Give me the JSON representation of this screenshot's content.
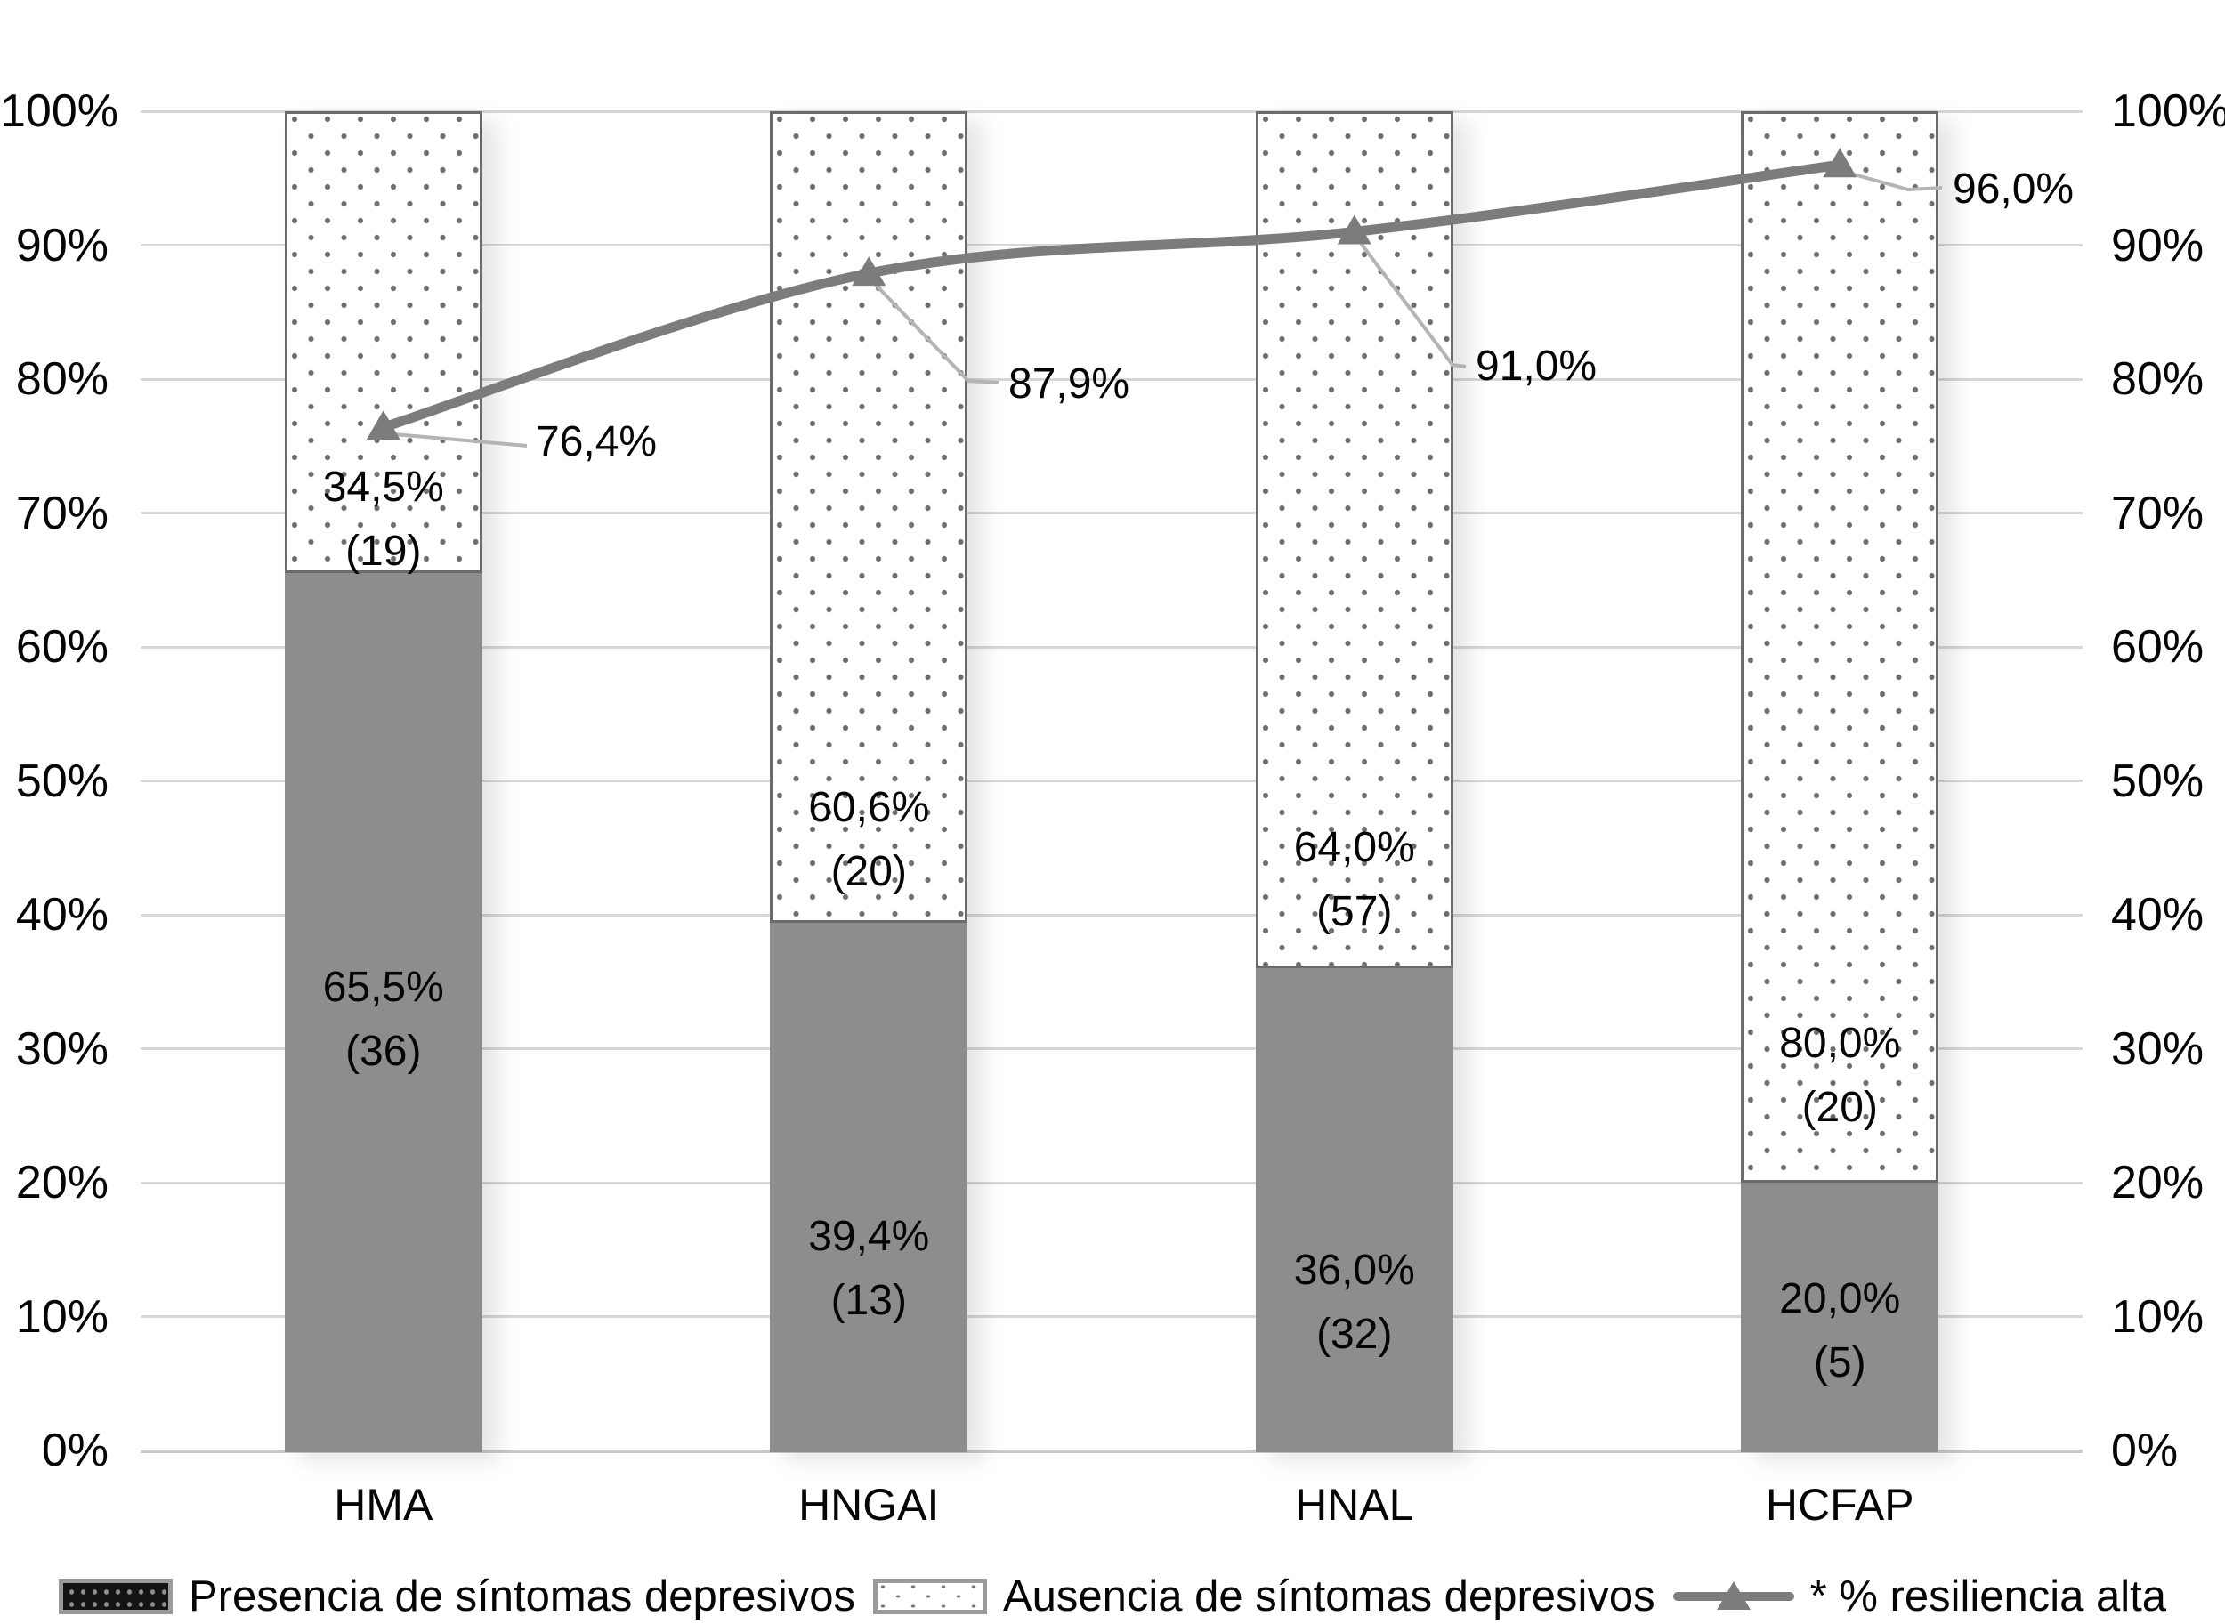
{
  "colors": {
    "bar_solid": "#8d8d8d",
    "bar_border": "#6b6b6b",
    "bar_dot": "#6e6e6e",
    "line": "#7c7c7c",
    "marker": "#7c7c7c",
    "leader": "#b4b4b4",
    "gridline": "#d7d7d7",
    "axis_line": "#c9c9c9",
    "text": "#050505"
  },
  "chart_data": {
    "type": "stacked-bar+line",
    "categories": [
      "HMA",
      "HNGAI",
      "HNAL",
      "HCFAP"
    ],
    "series": [
      {
        "name": "Presencia de síntomas depresivos",
        "kind": "bar",
        "stack_position": "bottom",
        "style": "solid-gray",
        "values": [
          65.5,
          39.4,
          36.0,
          20.0
        ],
        "counts": [
          36,
          13,
          32,
          5
        ],
        "value_labels": [
          "65,5%",
          "39,4%",
          "36,0%",
          "20,0%"
        ],
        "count_labels": [
          "(36)",
          "(13)",
          "(32)",
          "(5)"
        ]
      },
      {
        "name": "Ausencia de síntomas depresivos",
        "kind": "bar",
        "stack_position": "top",
        "style": "white-dotted",
        "values": [
          34.5,
          60.6,
          64.0,
          80.0
        ],
        "counts": [
          19,
          20,
          57,
          20
        ],
        "value_labels": [
          "34,5%",
          "60,6%",
          "64,0%",
          "80,0%"
        ],
        "count_labels": [
          "(19)",
          "(20)",
          "(57)",
          "(20)"
        ]
      },
      {
        "name": "* % resiliencia alta",
        "kind": "line",
        "marker": "triangle-up",
        "values": [
          76.4,
          87.9,
          91.0,
          96.0
        ],
        "value_labels": [
          "76,4%",
          "87,9%",
          "91,0%",
          "96,0%"
        ]
      }
    ],
    "y_axis_left": {
      "min": 0,
      "max": 100,
      "step": 10,
      "tick_labels": [
        "0%",
        "10%",
        "20%",
        "30%",
        "40%",
        "50%",
        "60%",
        "70%",
        "80%",
        "90%",
        "100%"
      ]
    },
    "y_axis_right": {
      "min": 0,
      "max": 100,
      "step": 10,
      "tick_labels": [
        "0%",
        "10%",
        "20%",
        "30%",
        "40%",
        "50%",
        "60%",
        "70%",
        "80%",
        "90%",
        "100%"
      ]
    },
    "grid": true,
    "legend_position": "bottom"
  }
}
